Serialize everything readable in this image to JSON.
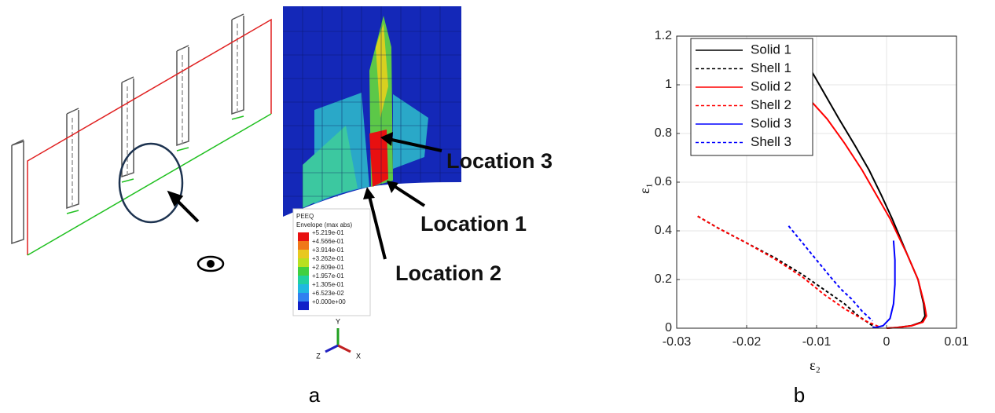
{
  "panel_a": {
    "annotations": [
      "Location 3",
      "Location 1",
      "Location 2"
    ],
    "legend": {
      "title": "PEEQ",
      "subtitle": "Envelope (max abs)",
      "labels": [
        "+5.219e-01",
        "+4.566e-01",
        "+3.914e-01",
        "+3.262e-01",
        "+2.609e-01",
        "+1.957e-01",
        "+1.305e-01",
        "+6.523e-02",
        "+0.000e+00"
      ]
    },
    "axes_triad": [
      "Y",
      "Z",
      "X"
    ],
    "caption": "a"
  },
  "panel_b": {
    "caption": "b"
  },
  "chart_data": {
    "type": "line",
    "xlabel": "ε₂",
    "ylabel": "ε₁",
    "xlim": [
      -0.03,
      0.01
    ],
    "xticks": [
      -0.03,
      -0.02,
      -0.01,
      0,
      0.01
    ],
    "ylim": [
      0,
      1.2
    ],
    "yticks": [
      0,
      0.2,
      0.4,
      0.6,
      0.8,
      1,
      1.2
    ],
    "grid": true,
    "legend_position": "upper-left",
    "series": [
      {
        "name": "Solid 1",
        "color": "#000000",
        "linestyle": "solid",
        "x": [
          -0.011,
          -0.009,
          -0.0068,
          -0.0045,
          -0.0025,
          -0.0008,
          0.0008,
          0.003,
          0.0045,
          0.0053,
          0.0055,
          0.005,
          0.0035,
          0.0015,
          0
        ],
        "values": [
          1.07,
          0.97,
          0.86,
          0.75,
          0.65,
          0.55,
          0.45,
          0.3,
          0.2,
          0.1,
          0.05,
          0.025,
          0.01,
          0.003,
          0
        ]
      },
      {
        "name": "Shell 1",
        "color": "#000000",
        "linestyle": "dashed",
        "x": [
          -0.027,
          -0.024,
          -0.02,
          -0.016,
          -0.012,
          -0.009,
          -0.006,
          -0.004,
          -0.002
        ],
        "values": [
          0.46,
          0.41,
          0.35,
          0.29,
          0.22,
          0.16,
          0.1,
          0.05,
          0.01
        ]
      },
      {
        "name": "Solid 2",
        "color": "#ff0000",
        "linestyle": "solid",
        "x": [
          -0.0107,
          -0.0085,
          -0.006,
          -0.0035,
          -0.0015,
          0.0005,
          0.003,
          0.0045,
          0.0054,
          0.0057,
          0.0052,
          0.0036,
          0.0016,
          0
        ],
        "values": [
          0.93,
          0.86,
          0.76,
          0.65,
          0.55,
          0.45,
          0.3,
          0.2,
          0.1,
          0.05,
          0.025,
          0.01,
          0.003,
          0
        ]
      },
      {
        "name": "Shell 2",
        "color": "#ff0000",
        "linestyle": "dashed",
        "x": [
          -0.027,
          -0.024,
          -0.02,
          -0.016,
          -0.012,
          -0.009,
          -0.006,
          -0.003,
          -0.001
        ],
        "values": [
          0.46,
          0.41,
          0.35,
          0.285,
          0.21,
          0.14,
          0.08,
          0.03,
          0.005
        ]
      },
      {
        "name": "Solid 3",
        "color": "#0000ff",
        "linestyle": "solid",
        "x": [
          0.001,
          0.0012,
          0.0012,
          0.001,
          0.0005,
          -0.0005,
          -0.0015,
          -0.002
        ],
        "values": [
          0.36,
          0.28,
          0.18,
          0.1,
          0.04,
          0.01,
          0.003,
          0.005
        ]
      },
      {
        "name": "Shell 3",
        "color": "#0000ff",
        "linestyle": "dashed",
        "x": [
          -0.014,
          -0.012,
          -0.01,
          -0.008,
          -0.0065,
          -0.005,
          -0.0035,
          -0.002
        ],
        "values": [
          0.42,
          0.35,
          0.28,
          0.21,
          0.16,
          0.12,
          0.07,
          0.03
        ]
      }
    ]
  }
}
